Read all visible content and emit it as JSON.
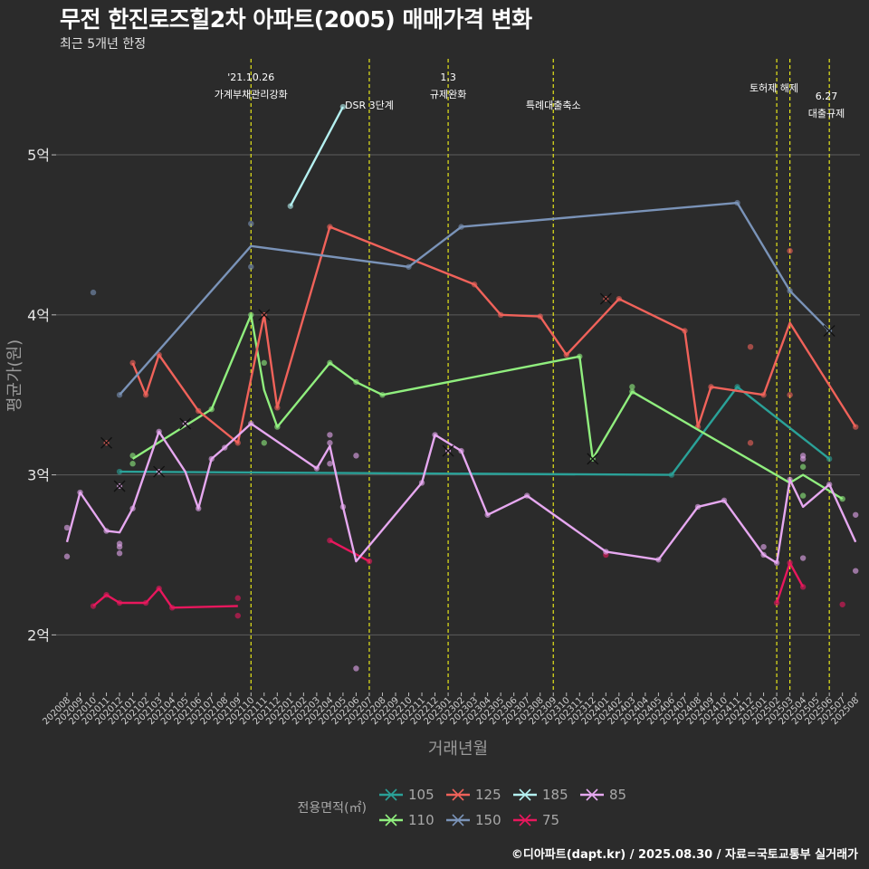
{
  "title": "무전 한진로즈힐2차 아파트(2005) 매매가격 변화",
  "subtitle": "최근 5개년 한정",
  "caption": "©디아파트(dapt.kr) / 2025.08.30 / 자료=국토교통부 실거래가",
  "chart_data": {
    "type": "line",
    "xlabel": "거래년월",
    "ylabel": "평균가(원)",
    "ylim": [
      1.64,
      5.6
    ],
    "yticks": [
      {
        "v": 2,
        "label": "2억"
      },
      {
        "v": 3,
        "label": "3억"
      },
      {
        "v": 4,
        "label": "4억"
      },
      {
        "v": 5,
        "label": "5억"
      }
    ],
    "months": [
      "202008",
      "202009",
      "202010",
      "202011",
      "202012",
      "202101",
      "202102",
      "202103",
      "202104",
      "202105",
      "202106",
      "202107",
      "202108",
      "202109",
      "202110",
      "202111",
      "202112",
      "202201",
      "202202",
      "202203",
      "202204",
      "202205",
      "202206",
      "202207",
      "202208",
      "202209",
      "202210",
      "202211",
      "202212",
      "202301",
      "202302",
      "202303",
      "202304",
      "202305",
      "202306",
      "202307",
      "202308",
      "202309",
      "202310",
      "202311",
      "202312",
      "202401",
      "202402",
      "202403",
      "202404",
      "202405",
      "202406",
      "202407",
      "202408",
      "202409",
      "202410",
      "202411",
      "202412",
      "202501",
      "202502",
      "202503",
      "202504",
      "202505",
      "202506",
      "202507",
      "202508"
    ],
    "legend_title": "전용면적(㎡)",
    "events": [
      {
        "x": "202110",
        "lines": [
          "'21.10.26",
          "가계부채관리강화"
        ]
      },
      {
        "x": "202207",
        "lines": [
          "DSR 3단계"
        ]
      },
      {
        "x": "202301",
        "lines": [
          "1.3",
          "규제완화"
        ]
      },
      {
        "x": "202309",
        "lines": [
          "특례대출축소"
        ]
      },
      {
        "x": "202502",
        "lines": [
          "토허제 해제"
        ]
      },
      {
        "x": "202503",
        "lines": [
          ""
        ]
      },
      {
        "x": "202506",
        "lines": [
          "6.27",
          "대출규제"
        ]
      }
    ],
    "series": [
      {
        "name": "105",
        "color": "#2aa198",
        "line": [
          [
            "202012",
            3.02
          ],
          [
            "202406",
            3.0
          ],
          [
            "202411",
            3.55
          ],
          [
            "202506",
            3.1
          ]
        ],
        "points": [
          [
            "202012",
            3.02
          ],
          [
            "202406",
            3.0
          ],
          [
            "202411",
            3.55
          ],
          [
            "202506",
            3.1
          ]
        ],
        "cancels": []
      },
      {
        "name": "110",
        "color": "#90ee7e",
        "line": [
          [
            "202101",
            3.1
          ],
          [
            "202107",
            3.41
          ],
          [
            "202110",
            4.0
          ],
          [
            "202111",
            3.53
          ],
          [
            "202112",
            3.3
          ],
          [
            "202204",
            3.7
          ],
          [
            "202206",
            3.58
          ],
          [
            "202208",
            3.5
          ],
          [
            "202311",
            3.74
          ],
          [
            "202312",
            3.1
          ],
          [
            "202403",
            3.52
          ],
          [
            "202503",
            2.95
          ],
          [
            "202504",
            3.0
          ],
          [
            "202507",
            2.85
          ]
        ],
        "points": [
          [
            "202101",
            3.12
          ],
          [
            "202101",
            3.07
          ],
          [
            "202107",
            3.41
          ],
          [
            "202110",
            4.0
          ],
          [
            "202111",
            3.7
          ],
          [
            "202111",
            3.2
          ],
          [
            "202112",
            3.3
          ],
          [
            "202204",
            3.7
          ],
          [
            "202206",
            3.58
          ],
          [
            "202208",
            3.5
          ],
          [
            "202311",
            3.74
          ],
          [
            "202403",
            3.55
          ],
          [
            "202403",
            3.52
          ],
          [
            "202504",
            3.05
          ],
          [
            "202504",
            2.87
          ],
          [
            "202507",
            2.85
          ]
        ],
        "cancels": [
          [
            "202312",
            3.1
          ]
        ]
      },
      {
        "name": "125",
        "color": "#f0625a",
        "line": [
          [
            "202101",
            3.7
          ],
          [
            "202102",
            3.5
          ],
          [
            "202103",
            3.75
          ],
          [
            "202106",
            3.4
          ],
          [
            "202109",
            3.2
          ],
          [
            "202111",
            4.0
          ],
          [
            "202112",
            3.42
          ],
          [
            "202204",
            4.55
          ],
          [
            "202303",
            4.19
          ],
          [
            "202305",
            4.0
          ],
          [
            "202308",
            3.99
          ],
          [
            "202310",
            3.75
          ],
          [
            "202402",
            4.1
          ],
          [
            "202407",
            3.9
          ],
          [
            "202408",
            3.3
          ],
          [
            "202409",
            3.55
          ],
          [
            "202501",
            3.5
          ],
          [
            "202503",
            3.95
          ],
          [
            "202508",
            3.3
          ]
        ],
        "points": [
          [
            "202101",
            3.7
          ],
          [
            "202102",
            3.5
          ],
          [
            "202103",
            3.75
          ],
          [
            "202106",
            3.4
          ],
          [
            "202109",
            3.2
          ],
          [
            "202112",
            3.42
          ],
          [
            "202204",
            4.55
          ],
          [
            "202303",
            4.19
          ],
          [
            "202305",
            4.0
          ],
          [
            "202308",
            3.99
          ],
          [
            "202310",
            3.75
          ],
          [
            "202402",
            4.1
          ],
          [
            "202407",
            3.9
          ],
          [
            "202408",
            3.3
          ],
          [
            "202409",
            3.55
          ],
          [
            "202412",
            3.8
          ],
          [
            "202412",
            3.2
          ],
          [
            "202501",
            3.5
          ],
          [
            "202503",
            4.4
          ],
          [
            "202503",
            3.5
          ],
          [
            "202508",
            3.3
          ]
        ],
        "cancels": [
          [
            "202011",
            3.2
          ],
          [
            "202111",
            4.0
          ],
          [
            "202401",
            4.1
          ]
        ]
      },
      {
        "name": "150",
        "color": "#7a93b8",
        "line": [
          [
            "202012",
            3.5
          ],
          [
            "202110",
            4.43
          ],
          [
            "202210",
            4.3
          ],
          [
            "202302",
            4.55
          ],
          [
            "202411",
            4.7
          ],
          [
            "202503",
            4.15
          ],
          [
            "202506",
            3.9
          ]
        ],
        "points": [
          [
            "202010",
            4.14
          ],
          [
            "202012",
            3.5
          ],
          [
            "202110",
            4.57
          ],
          [
            "202110",
            4.3
          ],
          [
            "202210",
            4.3
          ],
          [
            "202302",
            4.55
          ],
          [
            "202411",
            4.7
          ],
          [
            "202503",
            4.15
          ]
        ],
        "cancels": [
          [
            "202506",
            3.9
          ]
        ]
      },
      {
        "name": "185",
        "color": "#b4f0f0",
        "line": [
          [
            "202201",
            4.68
          ],
          [
            "202205",
            5.3
          ]
        ],
        "points": [
          [
            "202201",
            4.68
          ],
          [
            "202205",
            5.3
          ]
        ],
        "cancels": []
      },
      {
        "name": "75",
        "color": "#e8175d",
        "line": [
          [
            "202010",
            2.18
          ],
          [
            "202011",
            2.25
          ],
          [
            "202012",
            2.2
          ],
          [
            "202102",
            2.2
          ],
          [
            "202103",
            2.29
          ],
          [
            "202104",
            2.17
          ],
          [
            "202109",
            2.18
          ]
        ],
        "line2": [
          [
            "202204",
            2.59
          ],
          [
            "202207",
            2.46
          ]
        ],
        "line3": [
          [
            "202502",
            2.2
          ],
          [
            "202503",
            2.45
          ],
          [
            "202504",
            2.3
          ]
        ],
        "points": [
          [
            "202010",
            2.18
          ],
          [
            "202011",
            2.25
          ],
          [
            "202012",
            2.2
          ],
          [
            "202102",
            2.2
          ],
          [
            "202103",
            2.29
          ],
          [
            "202104",
            2.17
          ],
          [
            "202109",
            2.23
          ],
          [
            "202109",
            2.12
          ],
          [
            "202204",
            2.59
          ],
          [
            "202207",
            2.46
          ],
          [
            "202401",
            2.5
          ],
          [
            "202502",
            2.2
          ],
          [
            "202503",
            2.45
          ],
          [
            "202504",
            2.3
          ],
          [
            "202507",
            2.19
          ]
        ],
        "cancels": []
      },
      {
        "name": "85",
        "color": "#e6a8f0",
        "line": [
          [
            "202008",
            2.58
          ],
          [
            "202009",
            2.89
          ],
          [
            "202011",
            2.65
          ],
          [
            "202012",
            2.64
          ],
          [
            "202101",
            2.79
          ],
          [
            "202103",
            3.27
          ],
          [
            "202105",
            3.02
          ],
          [
            "202106",
            2.79
          ],
          [
            "202107",
            3.1
          ],
          [
            "202108",
            3.17
          ],
          [
            "202110",
            3.32
          ],
          [
            "202203",
            3.04
          ],
          [
            "202204",
            3.18
          ],
          [
            "202205",
            2.8
          ],
          [
            "202206",
            2.46
          ],
          [
            "202211",
            2.95
          ],
          [
            "202212",
            3.25
          ],
          [
            "202302",
            3.15
          ],
          [
            "202304",
            2.75
          ],
          [
            "202307",
            2.87
          ],
          [
            "202401",
            2.52
          ],
          [
            "202405",
            2.47
          ],
          [
            "202408",
            2.8
          ],
          [
            "202410",
            2.84
          ],
          [
            "202501",
            2.5
          ],
          [
            "202502",
            2.45
          ],
          [
            "202503",
            2.97
          ],
          [
            "202504",
            2.8
          ],
          [
            "202506",
            2.94
          ],
          [
            "202508",
            2.58
          ]
        ],
        "points": [
          [
            "202008",
            2.67
          ],
          [
            "202008",
            2.49
          ],
          [
            "202009",
            2.89
          ],
          [
            "202011",
            2.65
          ],
          [
            "202012",
            2.57
          ],
          [
            "202012",
            2.55
          ],
          [
            "202012",
            2.51
          ],
          [
            "202101",
            2.79
          ],
          [
            "202103",
            3.27
          ],
          [
            "202106",
            2.79
          ],
          [
            "202107",
            3.1
          ],
          [
            "202108",
            3.17
          ],
          [
            "202110",
            3.32
          ],
          [
            "202203",
            3.04
          ],
          [
            "202204",
            3.25
          ],
          [
            "202204",
            3.2
          ],
          [
            "202204",
            3.07
          ],
          [
            "202205",
            2.8
          ],
          [
            "202206",
            3.12
          ],
          [
            "202206",
            1.79
          ],
          [
            "202211",
            2.95
          ],
          [
            "202212",
            3.25
          ],
          [
            "202302",
            3.15
          ],
          [
            "202304",
            2.75
          ],
          [
            "202307",
            2.87
          ],
          [
            "202401",
            2.52
          ],
          [
            "202405",
            2.47
          ],
          [
            "202408",
            2.8
          ],
          [
            "202410",
            2.84
          ],
          [
            "202501",
            2.55
          ],
          [
            "202501",
            2.5
          ],
          [
            "202502",
            2.45
          ],
          [
            "202503",
            2.97
          ],
          [
            "202504",
            3.12
          ],
          [
            "202504",
            3.1
          ],
          [
            "202504",
            2.48
          ],
          [
            "202506",
            2.94
          ],
          [
            "202508",
            2.75
          ],
          [
            "202508",
            2.4
          ]
        ],
        "cancels": [
          [
            "202012",
            2.93
          ],
          [
            "202103",
            3.02
          ],
          [
            "202105",
            3.32
          ],
          [
            "202301",
            3.15
          ]
        ]
      }
    ]
  }
}
